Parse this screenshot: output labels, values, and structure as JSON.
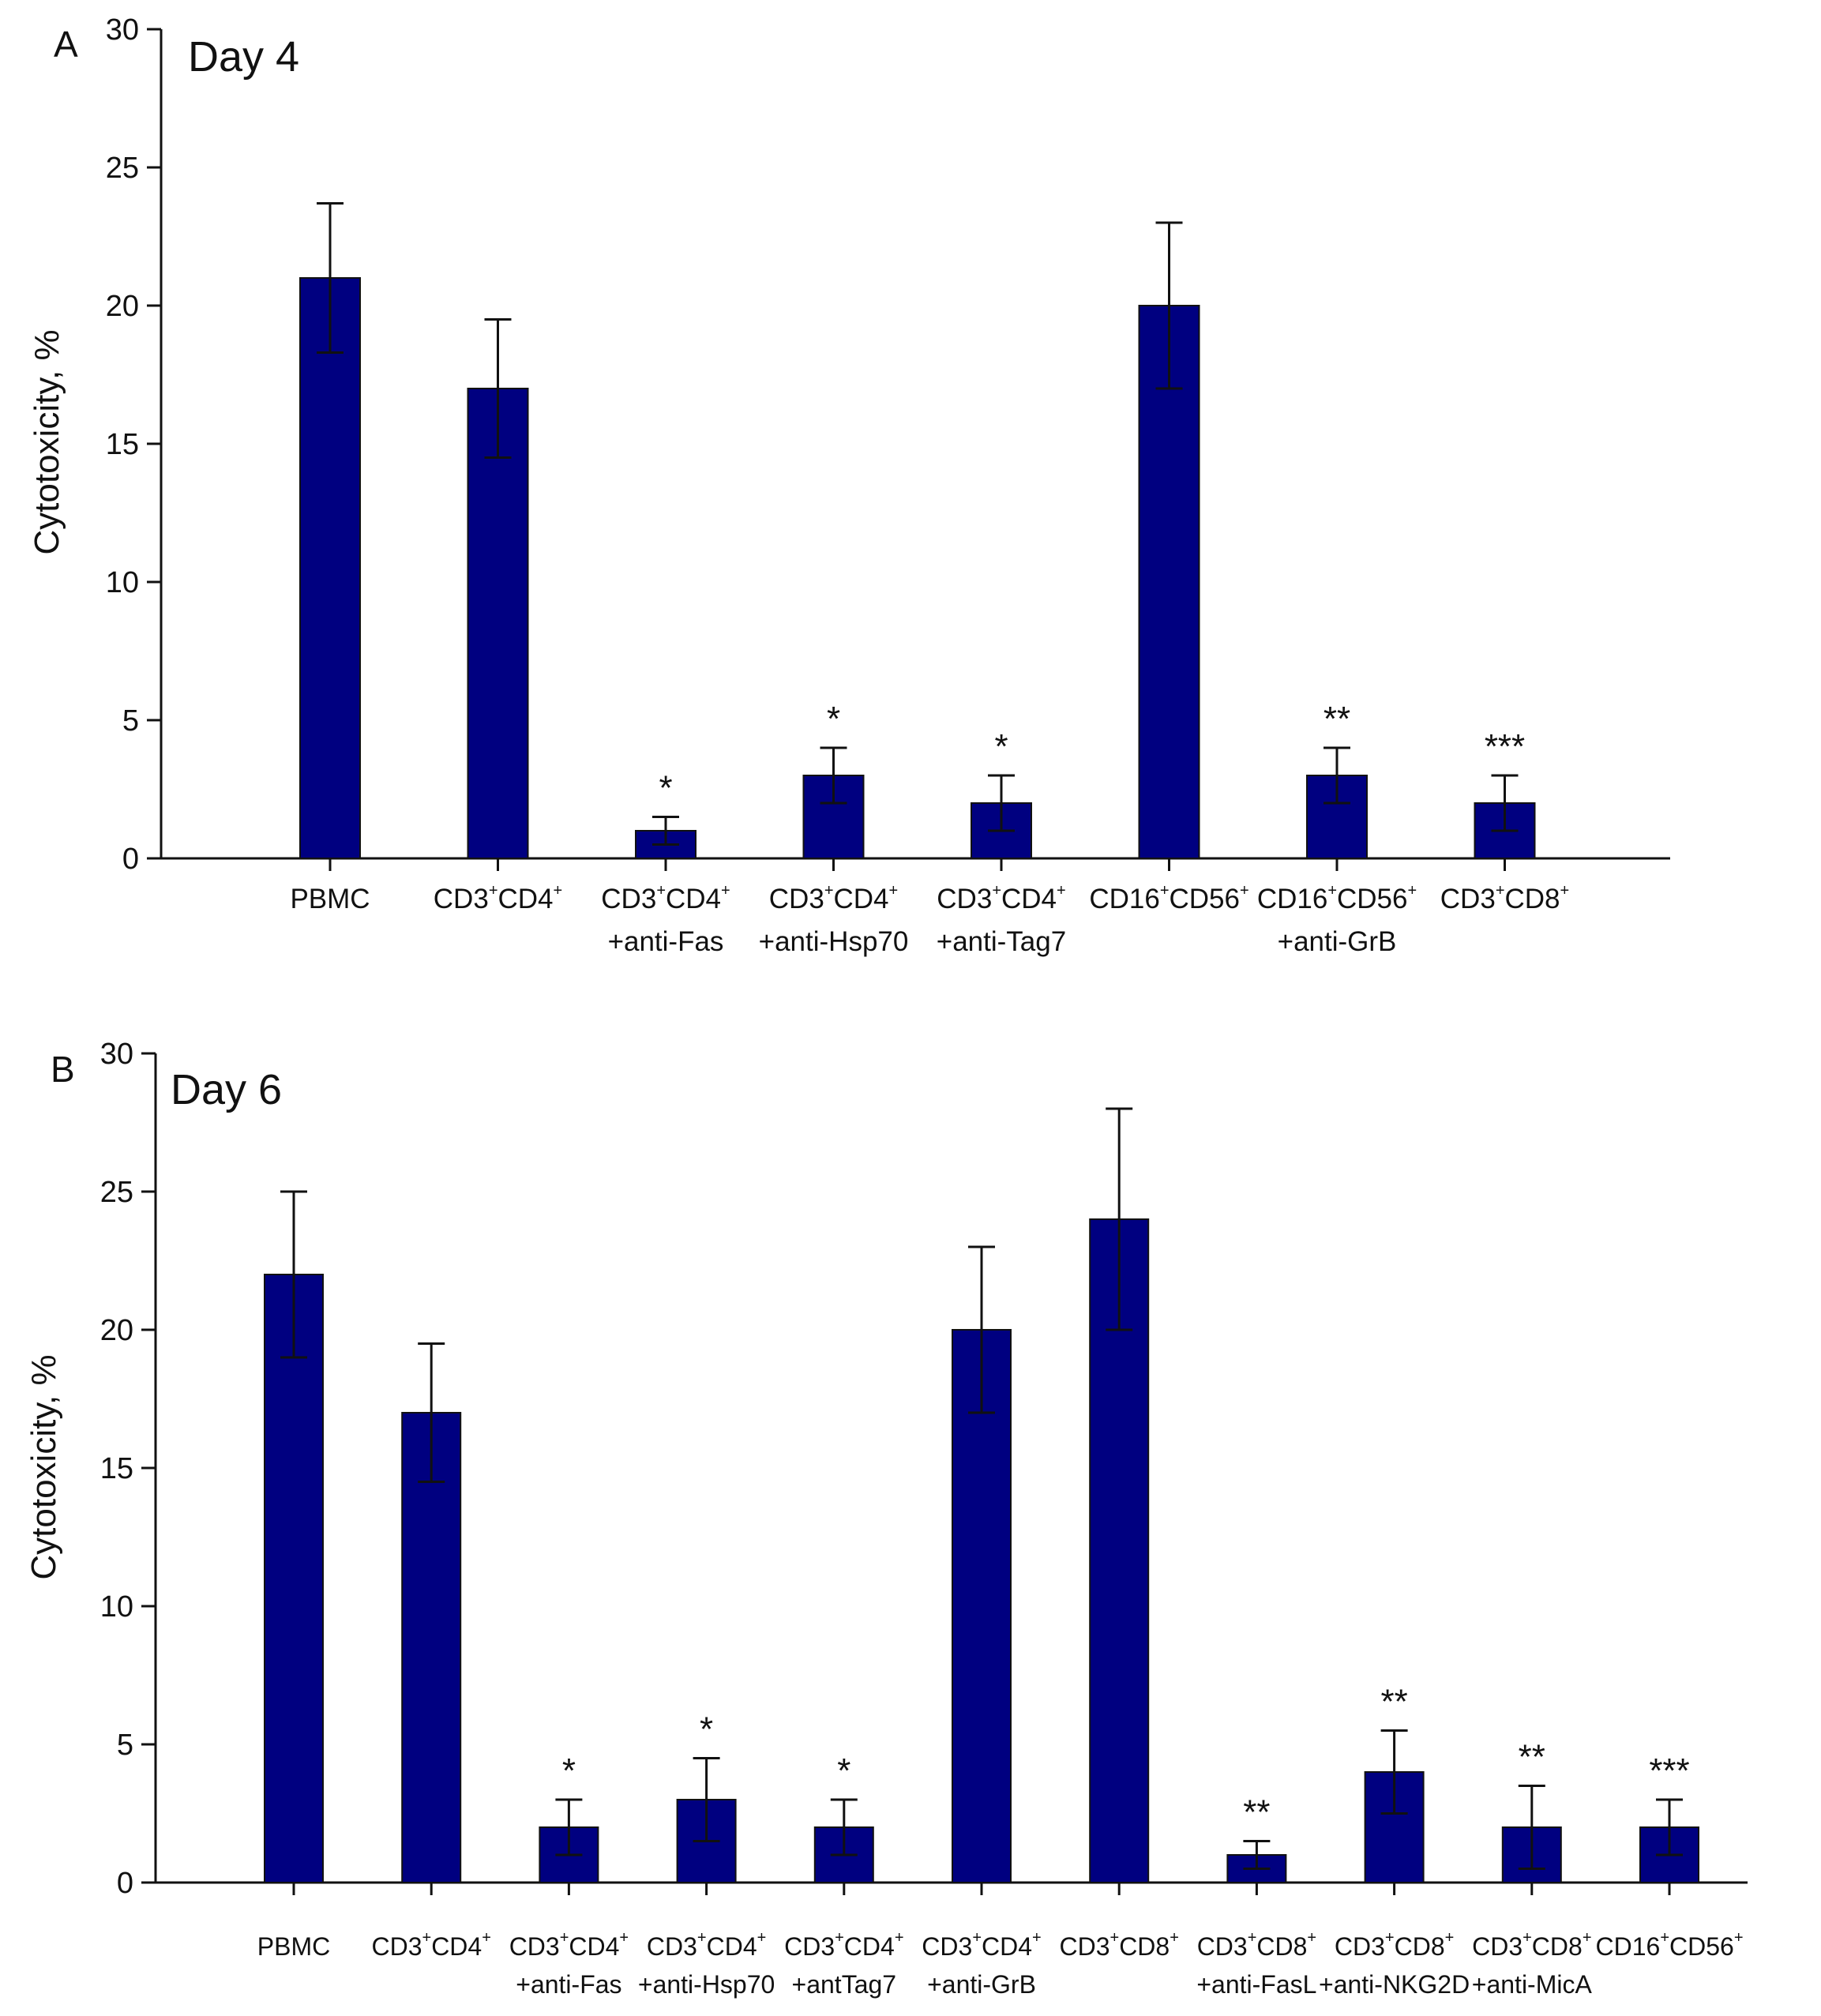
{
  "chart_data": [
    {
      "type": "bar",
      "panel": "A",
      "title": "Day 4",
      "ylabel": "Cytotoxicity, %",
      "xlabel": "",
      "ylim": [
        0,
        30
      ],
      "yticks": [
        0,
        5,
        10,
        15,
        20,
        25,
        30
      ],
      "grid": false,
      "bar_color": "#000080",
      "categories": [
        [
          "PBMC"
        ],
        [
          "CD3⁺CD4⁺"
        ],
        [
          "CD3⁺CD4⁺",
          "+anti-Fas"
        ],
        [
          "CD3⁺CD4⁺",
          "+anti-Hsp70"
        ],
        [
          "CD3⁺CD4⁺",
          "+anti-Tag7"
        ],
        [
          "CD16⁺CD56⁺"
        ],
        [
          "CD16⁺CD56⁺",
          "+anti-GrB"
        ],
        [
          "CD3⁺CD8⁺"
        ]
      ],
      "values": [
        21,
        17,
        1,
        3,
        2,
        20,
        3,
        2
      ],
      "errors": [
        2.7,
        2.5,
        0.5,
        1,
        1,
        3,
        1,
        1
      ],
      "significance": [
        "",
        "",
        "*",
        "*",
        "*",
        "",
        "**",
        "***"
      ]
    },
    {
      "type": "bar",
      "panel": "B",
      "title": "Day 6",
      "ylabel": "Cytotoxicity, %",
      "xlabel": "",
      "ylim": [
        0,
        30
      ],
      "yticks": [
        0,
        5,
        10,
        15,
        20,
        25,
        30
      ],
      "grid": false,
      "bar_color": "#000080",
      "categories": [
        [
          "PBMC"
        ],
        [
          "CD3⁺CD4⁺"
        ],
        [
          "CD3⁺CD4⁺",
          "+anti-Fas"
        ],
        [
          "CD3⁺CD4⁺",
          "+anti-Hsp70"
        ],
        [
          "CD3⁺CD4⁺",
          "+antTag7"
        ],
        [
          "CD3⁺CD4⁺",
          "+anti-GrB"
        ],
        [
          "CD3⁺CD8⁺"
        ],
        [
          "CD3⁺CD8⁺",
          "+anti-FasL"
        ],
        [
          "CD3⁺CD8⁺",
          "+anti-NKG2D"
        ],
        [
          "CD3⁺CD8⁺",
          "+anti-MicA"
        ],
        [
          "CD16⁺CD56⁺"
        ]
      ],
      "values": [
        22,
        17,
        2,
        3,
        2,
        20,
        24,
        1,
        4,
        2,
        2
      ],
      "errors": [
        3,
        2.5,
        1,
        1.5,
        1,
        3,
        4,
        0.5,
        1.5,
        1.5,
        1
      ],
      "significance": [
        "",
        "",
        "*",
        "*",
        "*",
        "",
        "",
        "**",
        "**",
        "**",
        "***"
      ]
    }
  ]
}
